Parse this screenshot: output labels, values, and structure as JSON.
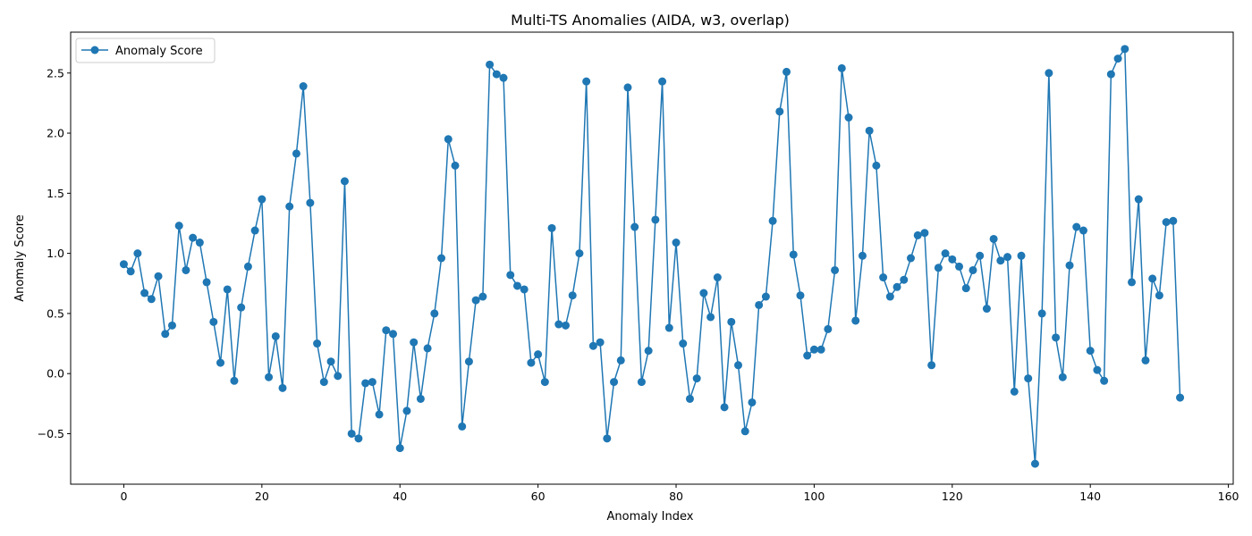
{
  "chart_data": {
    "type": "line",
    "title": "Multi-TS Anomalies (AIDA, w3, overlap)",
    "xlabel": "Anomaly Index",
    "ylabel": "Anomaly Score",
    "xlim": [
      -7.7,
      160.7
    ],
    "ylim": [
      -0.92,
      2.84
    ],
    "xticks": [
      0,
      20,
      40,
      60,
      80,
      100,
      120,
      140,
      160
    ],
    "yticks": [
      -0.5,
      0.0,
      0.5,
      1.0,
      1.5,
      2.0,
      2.5
    ],
    "xtick_labels": [
      "0",
      "20",
      "40",
      "60",
      "80",
      "100",
      "120",
      "140",
      "160"
    ],
    "ytick_labels": [
      "−0.5",
      "0.0",
      "0.5",
      "1.0",
      "1.5",
      "2.0",
      "2.5"
    ],
    "grid": false,
    "legend_position": "top-left",
    "series": [
      {
        "name": "Anomaly Score",
        "color": "#1f77b4",
        "marker": "circle",
        "values": [
          0.91,
          0.85,
          1.0,
          0.67,
          0.62,
          0.81,
          0.33,
          0.4,
          1.23,
          0.86,
          1.13,
          1.09,
          0.76,
          0.43,
          0.09,
          0.7,
          -0.06,
          0.55,
          0.89,
          1.19,
          1.45,
          -0.03,
          0.31,
          -0.12,
          1.39,
          1.83,
          2.39,
          1.42,
          0.25,
          -0.07,
          0.1,
          -0.02,
          1.6,
          -0.5,
          -0.54,
          -0.08,
          -0.07,
          -0.34,
          0.36,
          0.33,
          -0.62,
          -0.31,
          0.26,
          -0.21,
          0.21,
          0.5,
          0.96,
          1.95,
          1.73,
          -0.44,
          0.1,
          0.61,
          0.64,
          2.57,
          2.49,
          2.46,
          0.82,
          0.73,
          0.7,
          0.09,
          0.16,
          -0.07,
          1.21,
          0.41,
          0.4,
          0.65,
          1.0,
          2.43,
          0.23,
          0.26,
          -0.54,
          -0.07,
          0.11,
          2.38,
          1.22,
          -0.07,
          0.19,
          1.28,
          2.43,
          0.38,
          1.09,
          0.25,
          -0.21,
          -0.04,
          0.67,
          0.47,
          0.8,
          -0.28,
          0.43,
          0.07,
          -0.48,
          -0.24,
          0.57,
          0.64,
          1.27,
          2.18,
          2.51,
          0.99,
          0.65,
          0.15,
          0.2,
          0.2,
          0.37,
          0.86,
          2.54,
          2.13,
          0.44,
          0.98,
          2.02,
          1.73,
          0.8,
          0.64,
          0.72,
          0.78,
          0.96,
          1.15,
          1.17,
          0.07,
          0.88,
          1.0,
          0.95,
          0.89,
          0.71,
          0.86,
          0.98,
          0.54,
          1.12,
          0.94,
          0.97,
          -0.15,
          0.98,
          -0.04,
          -0.75,
          0.5,
          2.5,
          0.3,
          -0.03,
          0.9,
          1.22,
          1.19,
          0.19,
          0.03,
          -0.06,
          2.49,
          2.62,
          2.7,
          0.76,
          1.45,
          0.11,
          0.79,
          0.65,
          1.26,
          1.27,
          -0.2
        ]
      }
    ]
  }
}
